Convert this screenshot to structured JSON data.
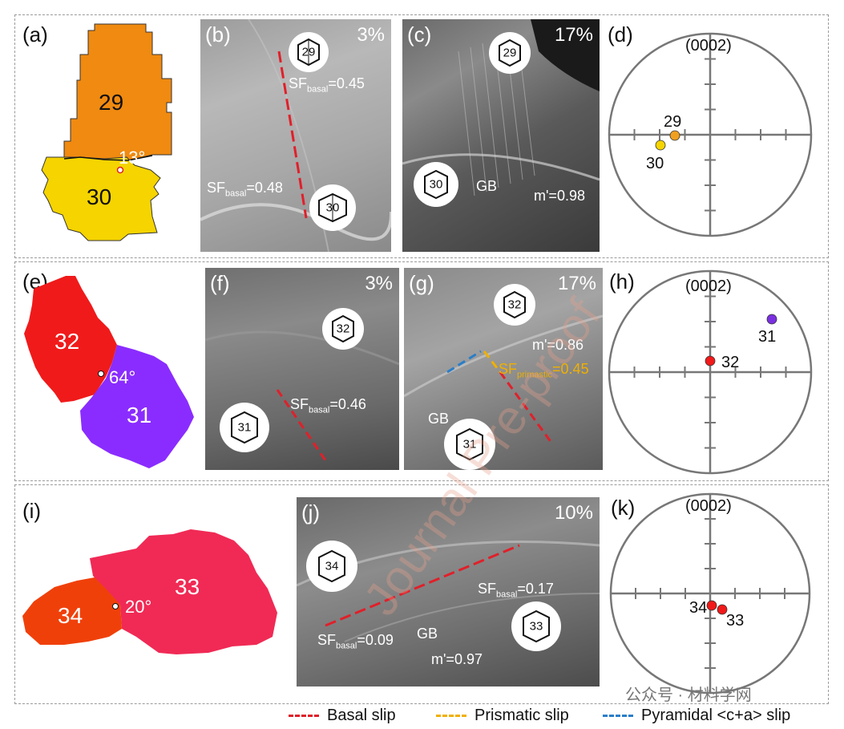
{
  "rows": [
    {
      "map_label": "(a)",
      "grains": [
        {
          "id": "29",
          "color": "#f08a10"
        },
        {
          "id": "30",
          "color": "#f5d400"
        }
      ],
      "angle": "13°",
      "sem": [
        {
          "label": "(b)",
          "strain": "3%",
          "annotations": [
            {
              "sub": "basal",
              "value": "=0.45"
            },
            {
              "sub": "basal",
              "value": "=0.48"
            }
          ],
          "cells": [
            "29",
            "30"
          ]
        },
        {
          "label": "(c)",
          "strain": "17%",
          "gb": "GB",
          "m": "m'=0.98",
          "cells": [
            "29",
            "30"
          ]
        }
      ],
      "pole": {
        "label": "(d)",
        "title": "(0002)",
        "poles": [
          {
            "id": "29",
            "color": "#f0a020"
          },
          {
            "id": "30",
            "color": "#f5d400"
          }
        ]
      }
    },
    {
      "map_label": "(e)",
      "grains": [
        {
          "id": "32",
          "color": "#f01a1a"
        },
        {
          "id": "31",
          "color": "#8a2cff"
        }
      ],
      "angle": "64°",
      "sem": [
        {
          "label": "(f)",
          "strain": "3%",
          "annotations": [
            {
              "sub": "basal",
              "value": "=0.46"
            }
          ],
          "cells": [
            "32",
            "31"
          ]
        },
        {
          "label": "(g)",
          "strain": "17%",
          "gb": "GB",
          "m": "m'=0.86",
          "prismatic": {
            "sub": "primastic",
            "value": "=0.45"
          },
          "cells": [
            "32",
            "31"
          ]
        }
      ],
      "pole": {
        "label": "(h)",
        "title": "(0002)",
        "poles": [
          {
            "id": "31",
            "color": "#7a30e0"
          },
          {
            "id": "32",
            "color": "#f01a1a"
          }
        ]
      }
    },
    {
      "map_label": "(i)",
      "grains": [
        {
          "id": "34",
          "color": "#f0400a"
        },
        {
          "id": "33",
          "color": "#f02a55"
        }
      ],
      "angle": "20°",
      "sem": [
        {
          "label": "(j)",
          "strain": "10%",
          "annotations": [
            {
              "sub": "basal",
              "value": "=0.17"
            },
            {
              "sub": "basal",
              "value": "=0.09"
            }
          ],
          "gb": "GB",
          "m": "m'=0.97",
          "cells": [
            "34",
            "33"
          ]
        }
      ],
      "pole": {
        "label": "(k)",
        "title": "(0002)",
        "poles": [
          {
            "id": "34",
            "color": "#f01a1a"
          },
          {
            "id": "33",
            "color": "#f01a1a"
          }
        ]
      }
    }
  ],
  "sf_prefix": "SF",
  "legend": [
    {
      "label": "Basal slip",
      "color": "#e0202a"
    },
    {
      "label": "Prismatic slip",
      "color": "#f0b000"
    },
    {
      "label": "Pyramidal <c+a> slip",
      "color": "#2a7ec8"
    }
  ],
  "watermark": "公众号 · 材料学网",
  "overlay_watermark": "Journal Pre-proof"
}
